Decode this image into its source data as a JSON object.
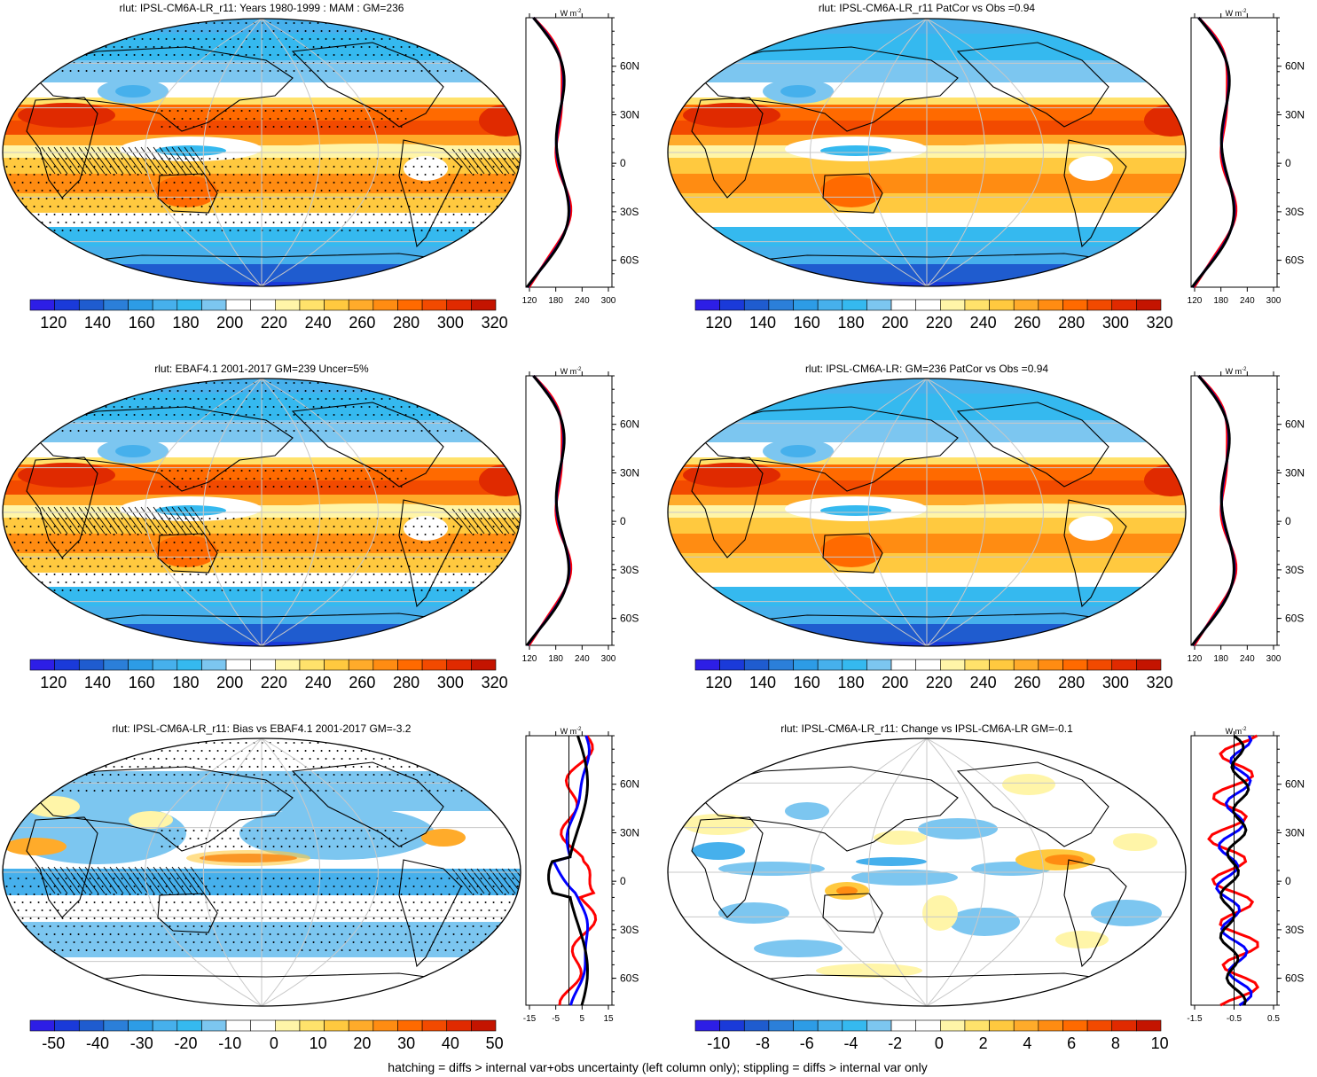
{
  "footer": "hatching = diffs > internal var+obs uncertainty (left column only); stippling = diffs > internal var only",
  "profile_unit": "W m",
  "profile_unit_exp": "-2",
  "lat_labels": [
    "60N",
    "30N",
    "0",
    "30S",
    "60S"
  ],
  "colors": {
    "model_line": "#ff0000",
    "obs_line": "#0000ff",
    "black_line": "#000000",
    "coast": "#000000",
    "grid": "#c8c8c8"
  },
  "colormaps": {
    "absolute": [
      "#2d1ee6",
      "#1a3ad9",
      "#1f5ccf",
      "#2b7fd9",
      "#2d9ce6",
      "#46b0ec",
      "#35b9ef",
      "#7cc6f0",
      "#ffffff",
      "#ffffff",
      "#fff5a8",
      "#ffe26b",
      "#ffc93f",
      "#ffab2a",
      "#ff8c12",
      "#ff6a00",
      "#f24a00",
      "#e02a00",
      "#c41400"
    ],
    "diverging": [
      "#2d1ee6",
      "#1a3ad9",
      "#1f5ccf",
      "#2b7fd9",
      "#2d9ce6",
      "#46b0ec",
      "#35b9ef",
      "#7cc6f0",
      "#ffffff",
      "#ffffff",
      "#fff5a8",
      "#ffe26b",
      "#ffc93f",
      "#ffab2a",
      "#ff8c12",
      "#ff6a00",
      "#f24a00",
      "#e02a00",
      "#c41400"
    ]
  },
  "panels": [
    {
      "id": "p1",
      "title": "rlut: IPSL-CM6A-LR_r11: Years 1980-1999 : MAM : GM=236",
      "field": "absolute",
      "hatching": true,
      "cbar_labels": [
        "120",
        "140",
        "160",
        "180",
        "200",
        "220",
        "240",
        "260",
        "280",
        "300",
        "320"
      ],
      "profile_ticks": [
        "120",
        "180",
        "240",
        "300"
      ]
    },
    {
      "id": "p2",
      "title": "rlut: IPSL-CM6A-LR_r11 PatCor vs Obs =0.94",
      "field": "absolute",
      "hatching": false,
      "cbar_labels": [
        "120",
        "140",
        "160",
        "180",
        "200",
        "220",
        "240",
        "260",
        "280",
        "300",
        "320"
      ],
      "profile_ticks": [
        "120",
        "180",
        "240",
        "300"
      ]
    },
    {
      "id": "p3",
      "title": "rlut: EBAF4.1 2001-2017 GM=239 Uncer=5%",
      "field": "absolute",
      "hatching": true,
      "cbar_labels": [
        "120",
        "140",
        "160",
        "180",
        "200",
        "220",
        "240",
        "260",
        "280",
        "300",
        "320"
      ],
      "profile_ticks": [
        "120",
        "180",
        "240",
        "300"
      ]
    },
    {
      "id": "p4",
      "title": "rlut: IPSL-CM6A-LR: GM=236 PatCor vs Obs =0.94",
      "field": "absolute",
      "hatching": false,
      "cbar_labels": [
        "120",
        "140",
        "160",
        "180",
        "200",
        "220",
        "240",
        "260",
        "280",
        "300",
        "320"
      ],
      "profile_ticks": [
        "120",
        "180",
        "240",
        "300"
      ]
    },
    {
      "id": "p5",
      "title": "rlut: IPSL-CM6A-LR_r11: Bias vs EBAF4.1 2001-2017 GM=-3.2",
      "field": "bias",
      "hatching": true,
      "cbar_labels": [
        "-50",
        "-40",
        "-30",
        "-20",
        "-10",
        "0",
        "10",
        "20",
        "30",
        "40",
        "50"
      ],
      "profile_ticks": [
        "-15",
        "-5",
        "5",
        "15"
      ]
    },
    {
      "id": "p6",
      "title": "rlut: IPSL-CM6A-LR_r11: Change vs IPSL-CM6A-LR GM=-0.1",
      "field": "change",
      "hatching": false,
      "cbar_labels": [
        "-10",
        "-8",
        "-6",
        "-4",
        "-2",
        "0",
        "2",
        "4",
        "6",
        "8",
        "10"
      ],
      "profile_ticks": [
        "-1.5",
        "-0.5",
        "0.5"
      ]
    }
  ]
}
